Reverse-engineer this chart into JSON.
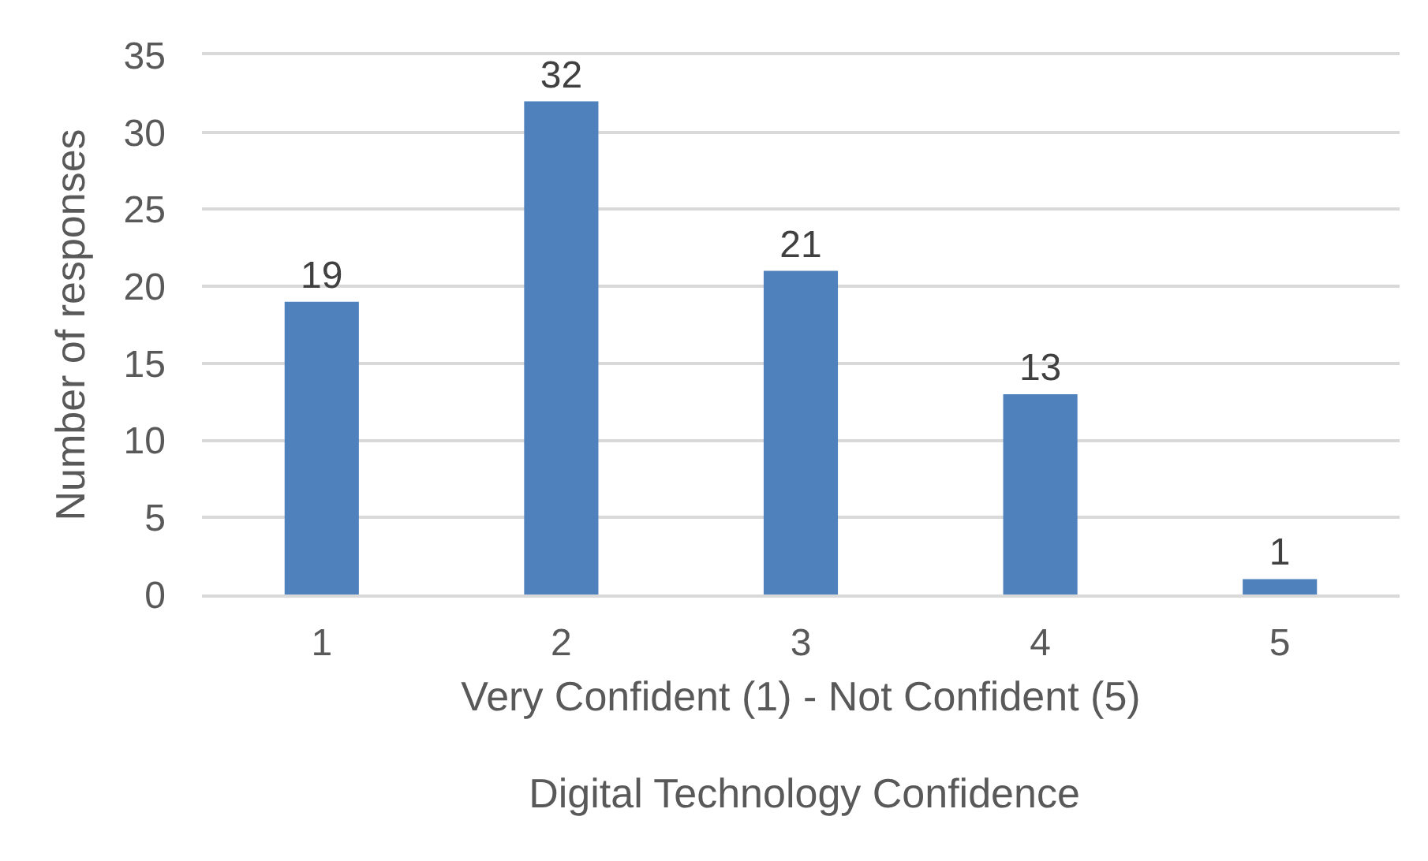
{
  "chart_data": {
    "type": "bar",
    "title": "Digital Technology Confidence",
    "xlabel": "Very Confident (1) - Not Confident (5)",
    "ylabel": "Number of responses",
    "categories": [
      "1",
      "2",
      "3",
      "4",
      "5"
    ],
    "values": [
      19,
      32,
      21,
      13,
      1
    ],
    "color": "#4f81bd",
    "ylim": [
      0,
      35
    ],
    "yticks": [
      0,
      5,
      10,
      15,
      20,
      25,
      30,
      35
    ],
    "grid": "y",
    "data_labels": true
  }
}
